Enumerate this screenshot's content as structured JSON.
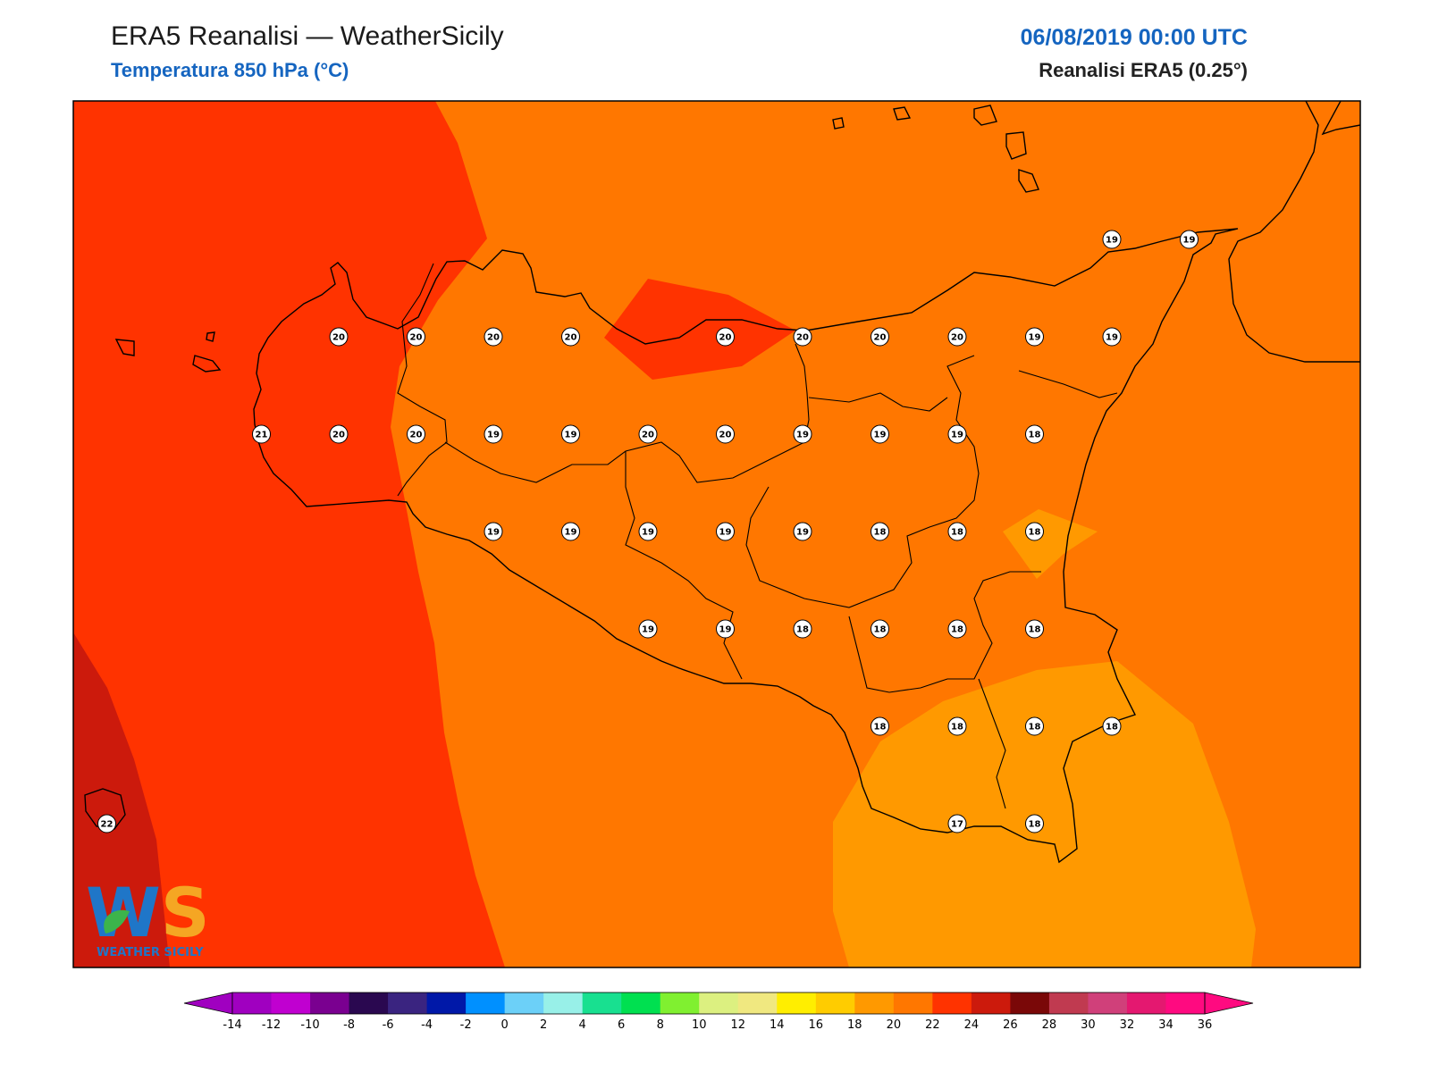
{
  "header": {
    "title": "ERA5 Reanalisi — WeatherSicily",
    "subtitle": "Temperatura 850 hPa (°C)",
    "datetime": "06/08/2019 00:00 UTC",
    "source": "Reanalisi ERA5 (0.25°)"
  },
  "logo": {
    "letters": "WS",
    "name": "WEATHER SICILY",
    "colors": {
      "w": "#1f76c8",
      "s": "#f5a623",
      "leaf": "#3cb44b"
    }
  },
  "colorbar": {
    "ticks": [
      "-14",
      "-12",
      "-10",
      "-8",
      "-6",
      "-4",
      "-2",
      "0",
      "2",
      "4",
      "6",
      "8",
      "10",
      "12",
      "14",
      "16",
      "18",
      "20",
      "22",
      "24",
      "26",
      "28",
      "30",
      "32",
      "34",
      "36"
    ],
    "colors": [
      "#a000c0",
      "#c000d0",
      "#7a0090",
      "#2a0850",
      "#3a2480",
      "#0018a8",
      "#0090ff",
      "#6cd0f8",
      "#98f0e8",
      "#18e090",
      "#00e050",
      "#80f030",
      "#dcf080",
      "#f0e880",
      "#ffee00",
      "#ffcc00",
      "#ff9900",
      "#ff7700",
      "#ff3300",
      "#cc1a0c",
      "#7a0808",
      "#c03a50",
      "#d0407a",
      "#e41870",
      "#ff0a80"
    ],
    "under_color": "#a000c0",
    "over_color": "#ff0a80"
  },
  "map": {
    "fill_colors": {
      "t16": "#ff9900",
      "t18": "#ff7700",
      "t20": "#ff3300",
      "t22": "#cc1a0c"
    },
    "stations": [
      {
        "value": "20",
        "lon": 12.5,
        "lat": 38.75
      },
      {
        "value": "20",
        "lon": 13.0,
        "lat": 38.75
      },
      {
        "value": "20",
        "lon": 13.5,
        "lat": 38.75
      },
      {
        "value": "20",
        "lon": 14.0,
        "lat": 38.75
      },
      {
        "value": "20",
        "lon": 15.0,
        "lat": 38.75
      },
      {
        "value": "20",
        "lon": 15.5,
        "lat": 38.75
      },
      {
        "value": "20",
        "lon": 16.0,
        "lat": 38.75
      },
      {
        "value": "20",
        "lon": 16.5,
        "lat": 38.75
      },
      {
        "value": "19",
        "lon": 17.0,
        "lat": 38.75
      },
      {
        "value": "19",
        "lon": 17.5,
        "lat": 38.75
      },
      {
        "value": "19",
        "lon": 17.5,
        "lat": 39.25
      },
      {
        "value": "19",
        "lon": 18.0,
        "lat": 39.25
      },
      {
        "value": "21",
        "lon": 12.0,
        "lat": 38.25
      },
      {
        "value": "20",
        "lon": 12.5,
        "lat": 38.25
      },
      {
        "value": "20",
        "lon": 13.0,
        "lat": 38.25
      },
      {
        "value": "19",
        "lon": 13.5,
        "lat": 38.25
      },
      {
        "value": "19",
        "lon": 14.0,
        "lat": 38.25
      },
      {
        "value": "20",
        "lon": 14.5,
        "lat": 38.25
      },
      {
        "value": "20",
        "lon": 15.0,
        "lat": 38.25
      },
      {
        "value": "19",
        "lon": 15.5,
        "lat": 38.25
      },
      {
        "value": "19",
        "lon": 16.0,
        "lat": 38.25
      },
      {
        "value": "19",
        "lon": 16.5,
        "lat": 38.25
      },
      {
        "value": "18",
        "lon": 17.0,
        "lat": 38.25
      },
      {
        "value": "19",
        "lon": 13.5,
        "lat": 37.75
      },
      {
        "value": "19",
        "lon": 14.0,
        "lat": 37.75
      },
      {
        "value": "19",
        "lon": 14.5,
        "lat": 37.75
      },
      {
        "value": "19",
        "lon": 15.0,
        "lat": 37.75
      },
      {
        "value": "19",
        "lon": 15.5,
        "lat": 37.75
      },
      {
        "value": "18",
        "lon": 16.0,
        "lat": 37.75
      },
      {
        "value": "18",
        "lon": 16.5,
        "lat": 37.75
      },
      {
        "value": "18",
        "lon": 17.0,
        "lat": 37.75
      },
      {
        "value": "19",
        "lon": 14.5,
        "lat": 37.25
      },
      {
        "value": "19",
        "lon": 15.0,
        "lat": 37.25
      },
      {
        "value": "18",
        "lon": 15.5,
        "lat": 37.25
      },
      {
        "value": "18",
        "lon": 16.0,
        "lat": 37.25
      },
      {
        "value": "18",
        "lon": 16.5,
        "lat": 37.25
      },
      {
        "value": "18",
        "lon": 17.0,
        "lat": 37.25
      },
      {
        "value": "18",
        "lon": 16.0,
        "lat": 36.75
      },
      {
        "value": "18",
        "lon": 16.5,
        "lat": 36.75
      },
      {
        "value": "18",
        "lon": 17.0,
        "lat": 36.75
      },
      {
        "value": "18",
        "lon": 17.5,
        "lat": 36.75
      },
      {
        "value": "17",
        "lon": 16.5,
        "lat": 36.25
      },
      {
        "value": "18",
        "lon": 17.0,
        "lat": 36.25
      },
      {
        "value": "22",
        "lon": 11.0,
        "lat": 36.25
      }
    ]
  }
}
